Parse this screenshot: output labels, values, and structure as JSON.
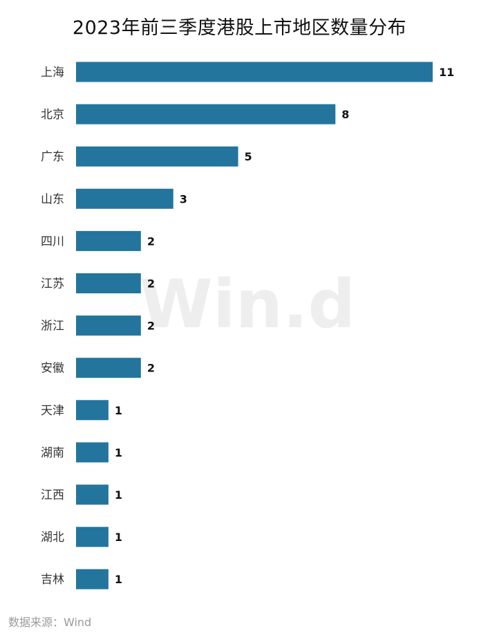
{
  "chart_data": {
    "type": "bar",
    "orientation": "horizontal",
    "title": "2023年前三季度港股上市地区数量分布",
    "categories": [
      "上海",
      "北京",
      "广东",
      "山东",
      "四川",
      "江苏",
      "浙江",
      "安徽",
      "天津",
      "湖南",
      "江西",
      "湖北",
      "吉林"
    ],
    "values": [
      11,
      8,
      5,
      3,
      2,
      2,
      2,
      2,
      1,
      1,
      1,
      1,
      1
    ],
    "xlim": [
      0,
      11
    ],
    "xlabel": "",
    "ylabel": "",
    "grid": false,
    "legend": "none",
    "bar_color": "#23759d",
    "data_labels": true
  },
  "watermark": "Win.d",
  "source": "数据来源：Wind"
}
